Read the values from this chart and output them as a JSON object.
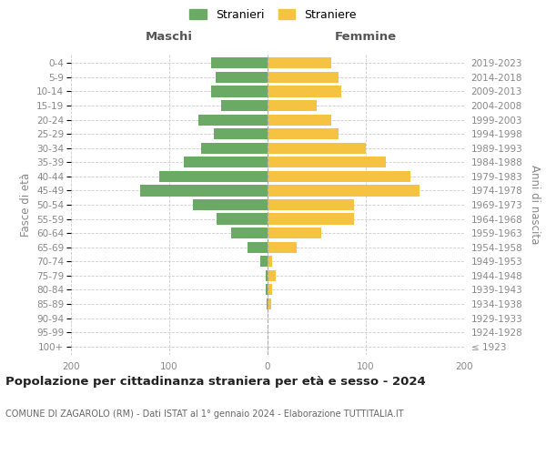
{
  "age_groups": [
    "100+",
    "95-99",
    "90-94",
    "85-89",
    "80-84",
    "75-79",
    "70-74",
    "65-69",
    "60-64",
    "55-59",
    "50-54",
    "45-49",
    "40-44",
    "35-39",
    "30-34",
    "25-29",
    "20-24",
    "15-19",
    "10-14",
    "5-9",
    "0-4"
  ],
  "birth_years": [
    "≤ 1923",
    "1924-1928",
    "1929-1933",
    "1934-1938",
    "1939-1943",
    "1944-1948",
    "1949-1953",
    "1954-1958",
    "1959-1963",
    "1964-1968",
    "1969-1973",
    "1974-1978",
    "1979-1983",
    "1984-1988",
    "1989-1993",
    "1994-1998",
    "1999-2003",
    "2004-2008",
    "2009-2013",
    "2014-2018",
    "2019-2023"
  ],
  "maschi": [
    0,
    0,
    0,
    1,
    2,
    2,
    7,
    20,
    37,
    52,
    76,
    130,
    110,
    85,
    68,
    55,
    70,
    47,
    57,
    53,
    57
  ],
  "femmine": [
    0,
    0,
    0,
    4,
    5,
    8,
    5,
    30,
    55,
    88,
    88,
    155,
    145,
    120,
    100,
    72,
    65,
    50,
    75,
    72,
    65
  ],
  "color_maschi": "#6aaa64",
  "color_femmine": "#f5c242",
  "title": "Popolazione per cittadinanza straniera per età e sesso - 2024",
  "subtitle": "COMUNE DI ZAGAROLO (RM) - Dati ISTAT al 1° gennaio 2024 - Elaborazione TUTTITALIA.IT",
  "xlabel_left": "Maschi",
  "xlabel_right": "Femmine",
  "ylabel_left": "Fasce di età",
  "ylabel_right": "Anni di nascita",
  "legend_maschi": "Stranieri",
  "legend_femmine": "Straniere",
  "xlim": 200,
  "background_color": "#ffffff",
  "grid_color": "#cccccc",
  "title_fontsize": 9.5,
  "subtitle_fontsize": 7.0,
  "tick_fontsize": 7.5,
  "label_fontsize": 8.5,
  "header_fontsize": 9.5
}
